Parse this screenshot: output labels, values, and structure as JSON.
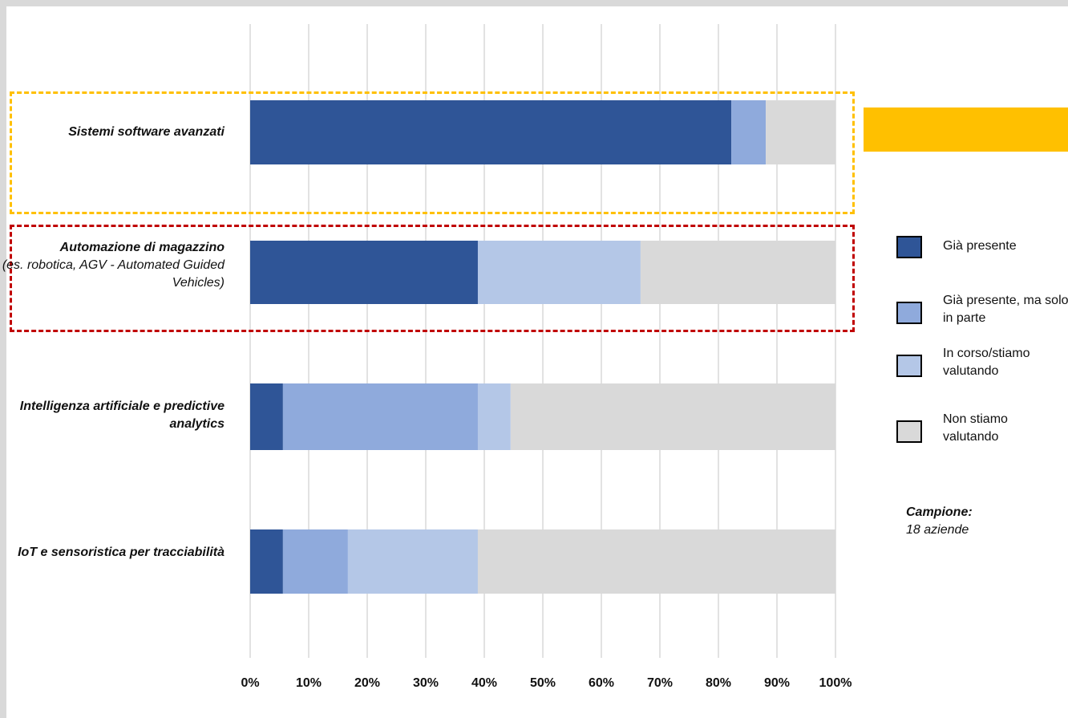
{
  "chart_data": {
    "type": "bar",
    "orientation": "horizontal",
    "stacked": true,
    "categories": [
      {
        "label": "Sistemi software avanzati",
        "note": ""
      },
      {
        "label": "Automazione di magazzino",
        "note": "(es. robotica, AGV - Automated Guided Vehicles)"
      },
      {
        "label": "Intelligenza artificiale e predictive analytics",
        "note": ""
      },
      {
        "label": "IoT e sensoristica per tracciabilità",
        "note": ""
      }
    ],
    "series": [
      {
        "name": "Già presente",
        "color": "#2f5597",
        "values": [
          82.2,
          38.9,
          5.6,
          5.6
        ]
      },
      {
        "name": "Già presente, ma solo in parte",
        "color": "#8faadc",
        "values": [
          5.9,
          0,
          33.3,
          11.1
        ]
      },
      {
        "name": "In corso/stiamo valutando",
        "color": "#b4c7e7",
        "values": [
          0,
          27.8,
          5.6,
          22.2
        ]
      },
      {
        "name": "Non stiamo valutando",
        "color": "#d9d9d9",
        "values": [
          11.9,
          33.3,
          55.5,
          61.1
        ]
      }
    ],
    "xlim": [
      0,
      100
    ],
    "xticks": [
      "0%",
      "10%",
      "20%",
      "30%",
      "40%",
      "50%",
      "60%",
      "70%",
      "80%",
      "90%",
      "100%"
    ],
    "grid": true,
    "legend_position": "right",
    "highlights": [
      {
        "category_index": 0,
        "color": "#ffc000"
      },
      {
        "category_index": 1,
        "color": "#c00000"
      }
    ]
  },
  "legend": {
    "items": [
      {
        "text": "Già presente",
        "color": "#2f5597"
      },
      {
        "text": "Già presente, ma solo in parte",
        "color": "#8faadc"
      },
      {
        "text": "In corso/stiamo valutando",
        "color": "#b4c7e7"
      },
      {
        "text": "Non stiamo valutando",
        "color": "#d9d9d9"
      }
    ]
  },
  "sample": {
    "title": "Campione:",
    "value": "18 aziende"
  },
  "accent_color": "#ffc000"
}
